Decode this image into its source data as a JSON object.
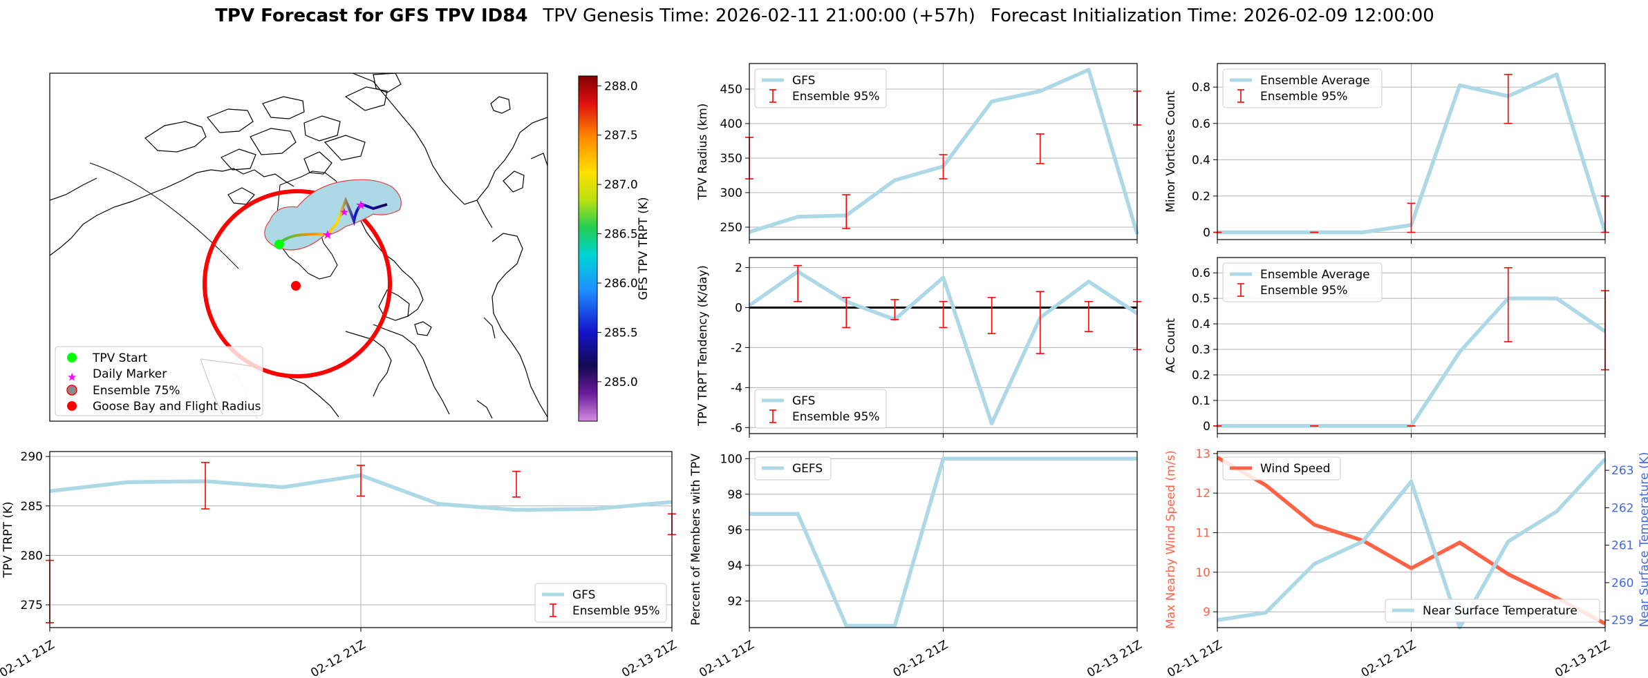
{
  "title": {
    "bold": "TPV Forecast for GFS TPV ID84",
    "genesis": "TPV Genesis Time: 2026-02-11 21:00:00 (+57h)",
    "init": "Forecast Initialization Time: 2026-02-09 12:00:00"
  },
  "colors": {
    "gfs_line": "#add8e6",
    "error_bar": "#ff0000",
    "wind_line": "#ff6347",
    "temp_axis": "#4169e1",
    "range_circle": "#ff0000",
    "ensemble_fill": "#add8e6",
    "start_marker": "#00ff00",
    "daily_marker": "#ff00ff",
    "goose_bay": "#ff0000"
  },
  "map": {
    "colorbar_label": "GFS TPV TRPT (K)",
    "colorbar_ticks": [
      "288.0",
      "287.5",
      "287.0",
      "286.5",
      "286.0",
      "285.5",
      "285.0"
    ],
    "colorbar_range": [
      284.6,
      288.1
    ],
    "legend": [
      "TPV Start",
      "Daily Marker",
      "Ensemble 75%",
      "Goose Bay and Flight Radius"
    ]
  },
  "chart_data": [
    {
      "id": "radius",
      "type": "line",
      "ylabel": "TPV Radius (km)",
      "ylim": [
        232,
        487
      ],
      "yticks": [
        250,
        300,
        350,
        400,
        450
      ],
      "x_tick_labels": [
        "",
        "",
        ""
      ],
      "series": [
        {
          "name": "GFS",
          "x": [
            0,
            3,
            6,
            9,
            12,
            15,
            18,
            21,
            24
          ],
          "values": [
            243,
            265,
            267,
            318,
            338,
            432,
            447,
            478,
            240
          ]
        }
      ],
      "ensemble_95": [
        {
          "x": 0,
          "lo": 320,
          "hi": 380
        },
        {
          "x": 6,
          "lo": 248,
          "hi": 297
        },
        {
          "x": 12,
          "lo": 320,
          "hi": 355
        },
        {
          "x": 18,
          "lo": 342,
          "hi": 385
        },
        {
          "x": 24,
          "lo": 398,
          "hi": 447
        }
      ],
      "legend": [
        "GFS",
        "Ensemble 95%"
      ],
      "legend_pos": "upper-left",
      "xgrid": [
        12
      ]
    },
    {
      "id": "minor",
      "type": "line",
      "ylabel": "Minor Vortices Count",
      "ylim": [
        -0.04,
        0.93
      ],
      "yticks": [
        0.0,
        0.2,
        0.4,
        0.6,
        0.8
      ],
      "x_tick_labels": [
        "",
        "",
        ""
      ],
      "series": [
        {
          "name": "Ensemble Average",
          "x": [
            0,
            3,
            6,
            9,
            12,
            15,
            18,
            21,
            24
          ],
          "values": [
            0,
            0,
            0,
            0,
            0.04,
            0.81,
            0.75,
            0.87,
            0
          ]
        }
      ],
      "ensemble_95": [
        {
          "x": 0,
          "lo": 0,
          "hi": 0
        },
        {
          "x": 6,
          "lo": 0,
          "hi": 0
        },
        {
          "x": 12,
          "lo": 0,
          "hi": 0.16
        },
        {
          "x": 18,
          "lo": 0.6,
          "hi": 0.87
        },
        {
          "x": 24,
          "lo": 0,
          "hi": 0.2
        }
      ],
      "legend": [
        "Ensemble Average",
        "Ensemble 95%"
      ],
      "legend_pos": "upper-left",
      "xgrid": [
        12
      ]
    },
    {
      "id": "tendency",
      "type": "line",
      "ylabel": "TPV TRPT Tendency (K/day)",
      "ylim": [
        -6.3,
        2.5
      ],
      "yticks": [
        -6,
        -4,
        -2,
        0,
        2
      ],
      "x_tick_labels": [
        "",
        "",
        ""
      ],
      "series": [
        {
          "name": "GFS",
          "x": [
            0,
            3,
            6,
            9,
            12,
            15,
            18,
            21,
            24
          ],
          "values": [
            0.1,
            1.8,
            0.3,
            -0.6,
            1.5,
            -5.8,
            -0.5,
            1.3,
            -0.3
          ]
        }
      ],
      "ensemble_95": [
        {
          "x": 3,
          "lo": 0.3,
          "hi": 2.1
        },
        {
          "x": 6,
          "lo": -1.0,
          "hi": 0.5
        },
        {
          "x": 9,
          "lo": -0.6,
          "hi": 0.4
        },
        {
          "x": 12,
          "lo": -1.0,
          "hi": 0.3
        },
        {
          "x": 15,
          "lo": -1.3,
          "hi": 0.5
        },
        {
          "x": 18,
          "lo": -2.3,
          "hi": 0.8
        },
        {
          "x": 21,
          "lo": -1.2,
          "hi": 0.3
        },
        {
          "x": 24,
          "lo": -2.1,
          "hi": 0.3
        }
      ],
      "zero_line": true,
      "legend": [
        "GFS",
        "Ensemble 95%"
      ],
      "legend_pos": "lower-left",
      "xgrid": [
        12
      ]
    },
    {
      "id": "ac",
      "type": "line",
      "ylabel": "AC Count",
      "ylim": [
        -0.03,
        0.66
      ],
      "yticks": [
        0.0,
        0.1,
        0.2,
        0.3,
        0.4,
        0.5,
        0.6
      ],
      "x_tick_labels": [
        "",
        "",
        ""
      ],
      "series": [
        {
          "name": "Ensemble Average",
          "x": [
            0,
            3,
            6,
            9,
            12,
            15,
            18,
            21,
            24
          ],
          "values": [
            0,
            0,
            0,
            0,
            0,
            0.29,
            0.5,
            0.5,
            0.37
          ]
        }
      ],
      "ensemble_95": [
        {
          "x": 0,
          "lo": 0,
          "hi": 0
        },
        {
          "x": 6,
          "lo": 0,
          "hi": 0
        },
        {
          "x": 12,
          "lo": 0,
          "hi": 0
        },
        {
          "x": 18,
          "lo": 0.33,
          "hi": 0.62
        },
        {
          "x": 24,
          "lo": 0.22,
          "hi": 0.53
        }
      ],
      "legend": [
        "Ensemble Average",
        "Ensemble 95%"
      ],
      "legend_pos": "upper-left",
      "xgrid": [
        12
      ]
    },
    {
      "id": "trpt",
      "type": "line",
      "ylabel": "TPV TRPT (K)",
      "ylim": [
        272.7,
        290.5
      ],
      "yticks": [
        275,
        280,
        285,
        290
      ],
      "x_tick_labels": [
        "02-11 21Z",
        "02-12 21Z",
        "02-13 21Z"
      ],
      "series": [
        {
          "name": "GFS",
          "x": [
            0,
            3,
            6,
            9,
            12,
            15,
            18,
            21,
            24
          ],
          "values": [
            286.5,
            287.4,
            287.5,
            286.9,
            288.1,
            285.2,
            284.6,
            284.7,
            285.4
          ]
        }
      ],
      "ensemble_95": [
        {
          "x": 0,
          "lo": 273.2,
          "hi": 279.5
        },
        {
          "x": 6,
          "lo": 284.7,
          "hi": 289.4
        },
        {
          "x": 12,
          "lo": 286.0,
          "hi": 289.1
        },
        {
          "x": 18,
          "lo": 285.9,
          "hi": 288.5
        },
        {
          "x": 24,
          "lo": 282.1,
          "hi": 284.2
        }
      ],
      "legend": [
        "GFS",
        "Ensemble 95%"
      ],
      "legend_pos": "lower-right",
      "xgrid": [
        12
      ]
    },
    {
      "id": "members",
      "type": "line",
      "ylabel": "Percent of Members with TPV",
      "ylim": [
        90.5,
        100.4
      ],
      "yticks": [
        92,
        94,
        96,
        98,
        100
      ],
      "x_tick_labels": [
        "02-11 21Z",
        "02-12 21Z",
        "02-13 21Z"
      ],
      "series": [
        {
          "name": "GEFS",
          "x": [
            0,
            3,
            6,
            9,
            12,
            15,
            18,
            21,
            24
          ],
          "values": [
            96.9,
            96.9,
            90.6,
            90.6,
            100,
            100,
            100,
            100,
            100
          ]
        }
      ],
      "ensemble_95": [],
      "legend": [
        "GEFS"
      ],
      "legend_pos": "upper-left",
      "xgrid": [
        12
      ]
    },
    {
      "id": "wind",
      "type": "line",
      "ylabel": "Max Nearby Wind Speed (m/s)",
      "ylim": [
        8.6,
        13.05
      ],
      "yticks": [
        9,
        10,
        11,
        12,
        13
      ],
      "x_tick_labels": [
        "02-11 21Z",
        "02-12 21Z",
        "02-13 21Z"
      ],
      "y2label": "Near Surface Temperature (K)",
      "y2lim": [
        258.8,
        263.5
      ],
      "y2ticks": [
        259,
        260,
        261,
        262,
        263
      ],
      "series": [
        {
          "name": "Wind Speed",
          "axis": "left",
          "x": [
            0,
            3,
            6,
            9,
            12,
            15,
            18,
            21,
            24
          ],
          "values": [
            12.9,
            12.2,
            11.2,
            10.8,
            10.1,
            10.75,
            9.95,
            9.35,
            8.7
          ]
        },
        {
          "name": "Near Surface Temperature",
          "axis": "right",
          "x": [
            0,
            3,
            6,
            9,
            12,
            15,
            18,
            21,
            24
          ],
          "values": [
            259.0,
            259.2,
            260.5,
            261.1,
            262.7,
            258.8,
            261.1,
            261.9,
            263.3
          ]
        }
      ],
      "ensemble_95": [],
      "legend": [
        "Wind Speed"
      ],
      "legend2": [
        "Near Surface Temperature"
      ],
      "legend_pos": "upper-left",
      "xgrid": [
        12
      ]
    }
  ]
}
